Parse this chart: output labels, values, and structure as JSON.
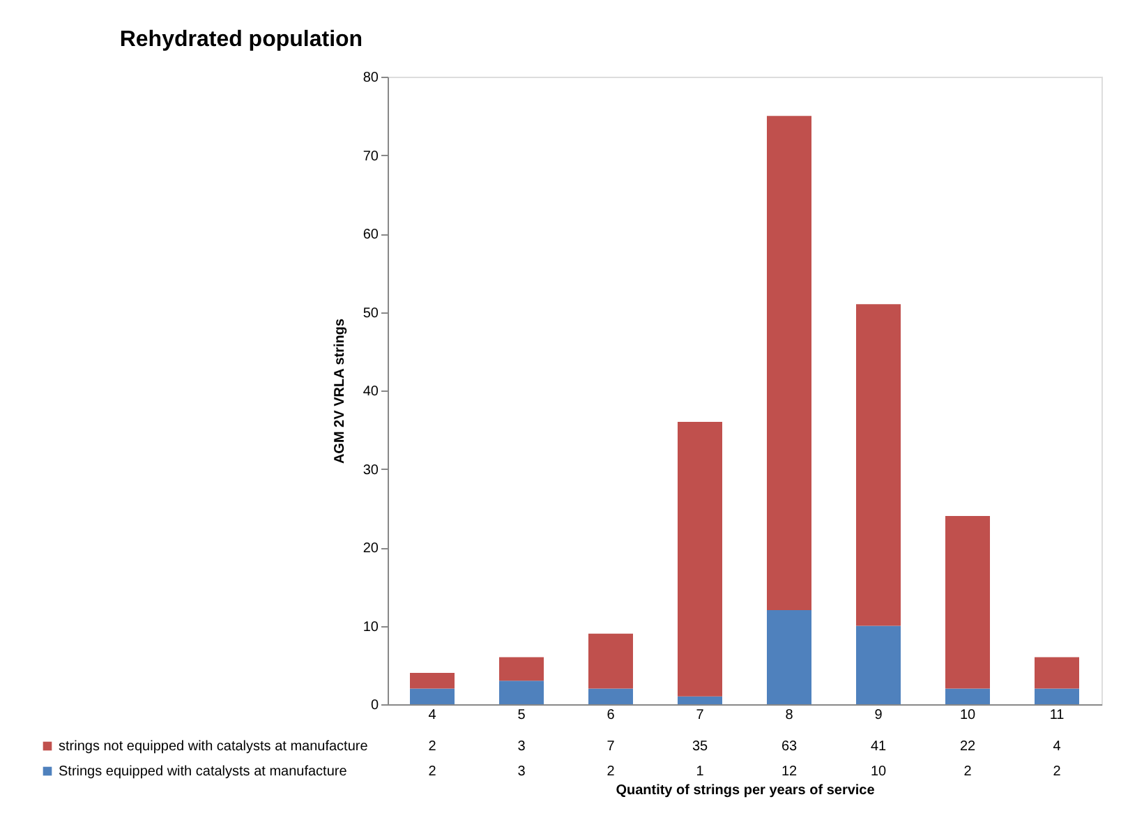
{
  "chart_data": {
    "type": "bar",
    "title": "Rehydrated population",
    "xlabel": "Quantity of strings per years of service",
    "ylabel": "AGM 2V VRLA strings",
    "categories": [
      "4",
      "5",
      "6",
      "7",
      "8",
      "9",
      "10",
      "11"
    ],
    "stacked": true,
    "ylim": [
      0,
      80
    ],
    "yticks": [
      0,
      10,
      20,
      30,
      40,
      50,
      60,
      70,
      80
    ],
    "grid": false,
    "legend": "bottom",
    "data_labels": true,
    "series": [
      {
        "name": "Strings equipped with catalysts at manufacture",
        "color": "#4f81bd",
        "values": [
          2,
          3,
          2,
          1,
          12,
          10,
          2,
          2
        ]
      },
      {
        "name": "strings not equipped with catalysts at manufacture",
        "color": "#c0504d",
        "values": [
          2,
          3,
          7,
          35,
          63,
          41,
          22,
          4
        ]
      }
    ]
  }
}
